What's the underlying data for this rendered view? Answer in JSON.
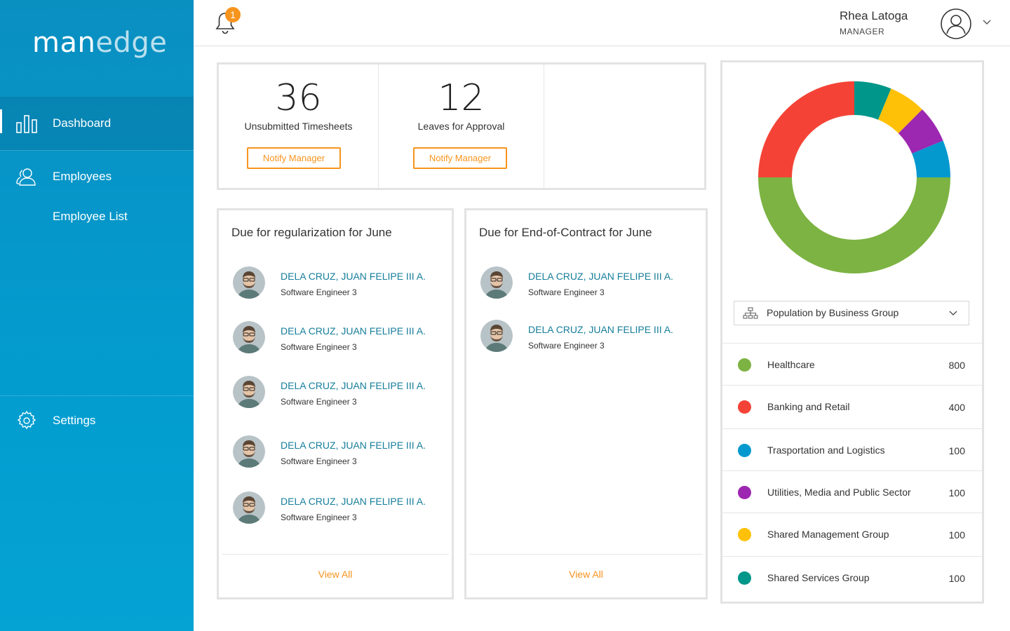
{
  "brand": {
    "logo_part1": "man",
    "logo_part2": "edge"
  },
  "sidebar": {
    "items": [
      {
        "label": "Dashboard",
        "icon": "bar-chart-icon",
        "active": true
      },
      {
        "label": "Employees",
        "icon": "users-icon"
      },
      {
        "label": "Employee List"
      },
      {
        "label": "Settings",
        "icon": "gear-icon"
      }
    ]
  },
  "header": {
    "notification_count": "1",
    "user_name": "Rhea Latoga",
    "user_role": "MANAGER"
  },
  "stats": [
    {
      "value": "36",
      "caption": "Unsubmitted Timesheets",
      "button": "Notify Manager"
    },
    {
      "value": "12",
      "caption": "Leaves for Approval",
      "button": "Notify Manager"
    }
  ],
  "regularization": {
    "title": "Due for regularization for June",
    "people": [
      {
        "name": "DELA CRUZ, JUAN FELIPE III A.",
        "role": "Software Engineer 3"
      },
      {
        "name": "DELA CRUZ, JUAN FELIPE III A.",
        "role": "Software Engineer 3"
      },
      {
        "name": "DELA CRUZ, JUAN FELIPE III A.",
        "role": "Software Engineer 3"
      },
      {
        "name": "DELA CRUZ, JUAN FELIPE III A.",
        "role": "Software Engineer 3"
      },
      {
        "name": "DELA CRUZ, JUAN FELIPE III A.",
        "role": "Software Engineer 3"
      }
    ],
    "view_all": "View All"
  },
  "end_of_contract": {
    "title": "Due for End-of-Contract for June",
    "people": [
      {
        "name": "DELA CRUZ, JUAN FELIPE III A.",
        "role": "Software Engineer 3"
      },
      {
        "name": "DELA CRUZ, JUAN FELIPE III A.",
        "role": "Software Engineer 3"
      }
    ],
    "view_all": "View All"
  },
  "population": {
    "selector_label": "Population by Business Group",
    "groups": [
      {
        "name": "Healthcare",
        "value": "800",
        "color": "#7cb342"
      },
      {
        "name": "Banking and Retail",
        "value": "400",
        "color": "#f44336"
      },
      {
        "name": "Trasportation and Logistics",
        "value": "100",
        "color": "#0399cf"
      },
      {
        "name": "Utilities, Media and Public Sector",
        "value": "100",
        "color": "#9c27b0"
      },
      {
        "name": "Shared Management Group",
        "value": "100",
        "color": "#ffc107"
      },
      {
        "name": "Shared Services Group",
        "value": "100",
        "color": "#00968a"
      }
    ]
  },
  "chart_data": {
    "type": "pie",
    "categories": [
      "Healthcare",
      "Banking and Retail",
      "Trasportation and Logistics",
      "Utilities, Media and Public Sector",
      "Shared Management Group",
      "Shared Services Group"
    ],
    "values": [
      800,
      400,
      100,
      100,
      100,
      100
    ],
    "colors": [
      "#7cb342",
      "#f44336",
      "#0399cf",
      "#9c27b0",
      "#ffc107",
      "#00968a"
    ]
  }
}
